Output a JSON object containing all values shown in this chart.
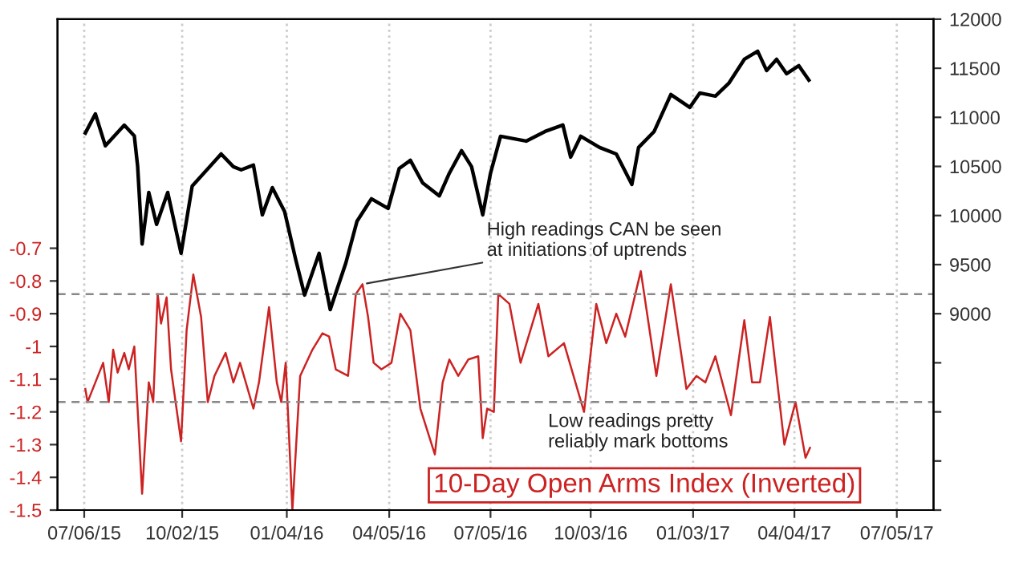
{
  "chart_data": {
    "type": "line",
    "xlim": [
      "2015-06-12",
      "2017-08-07"
    ],
    "xticks": [
      {
        "value": "2015-07-06",
        "label": "07/06/15"
      },
      {
        "value": "2015-10-02",
        "label": "10/02/15"
      },
      {
        "value": "2016-01-04",
        "label": "01/04/16"
      },
      {
        "value": "2016-04-05",
        "label": "04/05/16"
      },
      {
        "value": "2016-07-05",
        "label": "07/05/16"
      },
      {
        "value": "2016-10-03",
        "label": "10/03/16"
      },
      {
        "value": "2017-01-03",
        "label": "01/03/17"
      },
      {
        "value": "2017-04-04",
        "label": "04/04/17"
      },
      {
        "value": "2017-07-05",
        "label": "07/05/17"
      }
    ],
    "ylim": [
      -1.5,
      0
    ],
    "yticks": [
      -1.5,
      -1.4,
      -1.3,
      -1.2,
      -1.1,
      -1,
      -0.9,
      -0.8,
      -0.7
    ],
    "y2lim": [
      7000,
      12000
    ],
    "y2ticks": [
      {
        "value": 7000,
        "label": null
      },
      {
        "value": 7500,
        "label": null
      },
      {
        "value": 8000,
        "label": null
      },
      {
        "value": 8500,
        "label": null
      },
      9000,
      9500,
      10000,
      10500,
      11000,
      11500,
      12000
    ],
    "grid": "x",
    "series": [
      {
        "color": "#000000",
        "axis": "y2",
        "x": [
          "2015-07-07",
          "2015-07-16",
          "2015-07-25",
          "2015-08-11",
          "2015-08-20",
          "2015-08-23",
          "2015-08-27",
          "2015-09-02",
          "2015-09-09",
          "2015-09-19",
          "2015-10-01",
          "2015-10-11",
          "2015-11-06",
          "2015-11-17",
          "2015-11-24",
          "2015-12-05",
          "2015-12-13",
          "2015-12-22",
          "2016-01-02",
          "2016-01-12",
          "2016-01-20",
          "2016-02-02",
          "2016-02-12",
          "2016-02-26",
          "2016-03-07",
          "2016-03-20",
          "2016-04-04",
          "2016-04-14",
          "2016-04-24",
          "2016-05-05",
          "2016-05-20",
          "2016-05-29",
          "2016-06-09",
          "2016-06-18",
          "2016-06-28",
          "2016-07-05",
          "2016-07-14",
          "2016-08-06",
          "2016-08-23",
          "2016-09-08",
          "2016-09-15",
          "2016-09-24",
          "2016-10-11",
          "2016-10-26",
          "2016-11-09",
          "2016-11-15",
          "2016-11-29",
          "2016-12-14",
          "2016-12-31",
          "2017-01-09",
          "2017-01-23",
          "2017-02-04",
          "2017-02-18",
          "2017-03-02",
          "2017-03-10",
          "2017-03-19",
          "2017-03-28",
          "2017-04-08",
          "2017-04-17"
        ],
        "values": [
          10840,
          11035,
          10710,
          10920,
          10810,
          10500,
          9710,
          10235,
          9910,
          10235,
          9615,
          10300,
          10627,
          10497,
          10465,
          10513,
          10007,
          10284,
          10040,
          9550,
          9190,
          9615,
          9042,
          9516,
          9940,
          10170,
          10072,
          10480,
          10562,
          10333,
          10200,
          10431,
          10660,
          10497,
          10007,
          10431,
          10807,
          10758,
          10856,
          10922,
          10595,
          10807,
          10693,
          10627,
          10317,
          10693,
          10856,
          11232,
          11101,
          11248,
          11216,
          11346,
          11591,
          11673,
          11477,
          11591,
          11444,
          11526,
          11379
        ]
      },
      {
        "name": "10-Day Open Arms Index (Inverted)",
        "color": "#cc2222",
        "axis": "y",
        "x": [
          "2015-07-07",
          "2015-07-09",
          "2015-07-16",
          "2015-07-23",
          "2015-07-28",
          "2015-08-01",
          "2015-08-05",
          "2015-08-11",
          "2015-08-15",
          "2015-08-20",
          "2015-08-27",
          "2015-09-02",
          "2015-09-06",
          "2015-09-10",
          "2015-09-13",
          "2015-09-18",
          "2015-09-22",
          "2015-10-01",
          "2015-10-06",
          "2015-10-12",
          "2015-10-19",
          "2015-10-25",
          "2015-10-31",
          "2015-11-10",
          "2015-11-17",
          "2015-11-23",
          "2015-12-05",
          "2015-12-10",
          "2015-12-19",
          "2015-12-26",
          "2015-12-30",
          "2016-01-03",
          "2016-01-09",
          "2016-01-16",
          "2016-01-27",
          "2016-02-05",
          "2016-02-11",
          "2016-02-17",
          "2016-02-28",
          "2016-03-06",
          "2016-03-12",
          "2016-03-17",
          "2016-03-22",
          "2016-03-29",
          "2016-04-07",
          "2016-04-15",
          "2016-04-24",
          "2016-05-03",
          "2016-05-16",
          "2016-05-23",
          "2016-05-29",
          "2016-06-06",
          "2016-06-15",
          "2016-06-24",
          "2016-06-28",
          "2016-07-02",
          "2016-07-08",
          "2016-07-12",
          "2016-07-22",
          "2016-08-01",
          "2016-08-17",
          "2016-08-26",
          "2016-09-09",
          "2016-09-27",
          "2016-10-08",
          "2016-10-17",
          "2016-10-26",
          "2016-11-03",
          "2016-11-17",
          "2016-12-01",
          "2016-12-14",
          "2016-12-28",
          "2017-01-06",
          "2017-01-14",
          "2017-01-23",
          "2017-02-06",
          "2017-02-18",
          "2017-02-25",
          "2017-03-04",
          "2017-03-13",
          "2017-03-19",
          "2017-03-26",
          "2017-04-05",
          "2017-04-14",
          "2017-04-18"
        ],
        "values": [
          -1.13,
          -1.17,
          -1.11,
          -1.05,
          -1.17,
          -1.01,
          -1.08,
          -1.02,
          -1.07,
          -1.0,
          -1.45,
          -1.11,
          -1.17,
          -0.84,
          -0.93,
          -0.85,
          -1.07,
          -1.29,
          -0.95,
          -0.78,
          -0.91,
          -1.17,
          -1.09,
          -1.02,
          -1.11,
          -1.05,
          -1.19,
          -1.11,
          -0.88,
          -1.11,
          -1.17,
          -1.05,
          -1.5,
          -1.09,
          -1.01,
          -0.96,
          -0.97,
          -1.07,
          -1.09,
          -0.84,
          -0.81,
          -0.91,
          -1.05,
          -1.07,
          -1.05,
          -0.9,
          -0.95,
          -1.19,
          -1.33,
          -1.11,
          -1.04,
          -1.09,
          -1.04,
          -1.03,
          -1.28,
          -1.19,
          -1.2,
          -0.84,
          -0.87,
          -1.05,
          -0.87,
          -1.03,
          -0.99,
          -1.2,
          -0.87,
          -0.99,
          -0.9,
          -0.97,
          -0.77,
          -1.09,
          -0.81,
          -1.13,
          -1.09,
          -1.11,
          -1.03,
          -1.21,
          -0.92,
          -1.11,
          -1.11,
          -0.91,
          -1.09,
          -1.3,
          -1.17,
          -1.34,
          -1.31
        ]
      }
    ],
    "ref_lines": [
      {
        "axis": "y",
        "value": -0.84,
        "color": "#888888",
        "line_style": "dashed"
      },
      {
        "axis": "y",
        "value": -1.17,
        "color": "#888888",
        "line_style": "dashed"
      }
    ],
    "annotations": [
      {
        "text": "High readings CAN be seen\nat initiations of uptrends",
        "x": "2016-03-12",
        "y": -0.81
      },
      "Low readings pretty\nreliably mark bottoms"
    ]
  }
}
